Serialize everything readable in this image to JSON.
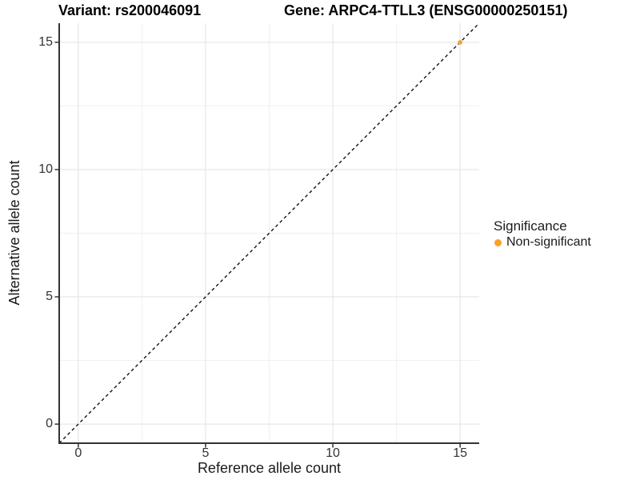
{
  "chart_data": {
    "type": "scatter",
    "titles": [
      {
        "text": "Variant: rs200046091",
        "position": "left"
      },
      {
        "text": "Gene: ARPC4-TTLL3 (ENSG00000250151)",
        "position": "right"
      }
    ],
    "xlabel": "Reference allele count",
    "ylabel": "Alternative allele count",
    "xlim": [
      -0.75,
      15.75
    ],
    "ylim": [
      -0.75,
      15.75
    ],
    "xticks": [
      0,
      5,
      10,
      15
    ],
    "yticks": [
      0,
      5,
      10,
      15
    ],
    "minor_ticks": [
      2.5,
      7.5,
      12.5
    ],
    "grid": true,
    "points": [
      {
        "x": 15,
        "y": 15,
        "series": "Non-significant"
      }
    ],
    "reference_line": {
      "type": "identity",
      "style": "dashed",
      "from": -0.75,
      "to": 15.75
    },
    "legend": {
      "title": "Significance",
      "position": "right",
      "entries": [
        {
          "label": "Non-significant",
          "color": "#F9A12B"
        }
      ]
    },
    "colors": {
      "point": "#F9A12B",
      "grid_major": "#E2E2E2",
      "grid_minor": "#F0F0F0",
      "axis_line": "#333333",
      "tick_mark": "#333333",
      "reference_line": "#000000"
    }
  }
}
